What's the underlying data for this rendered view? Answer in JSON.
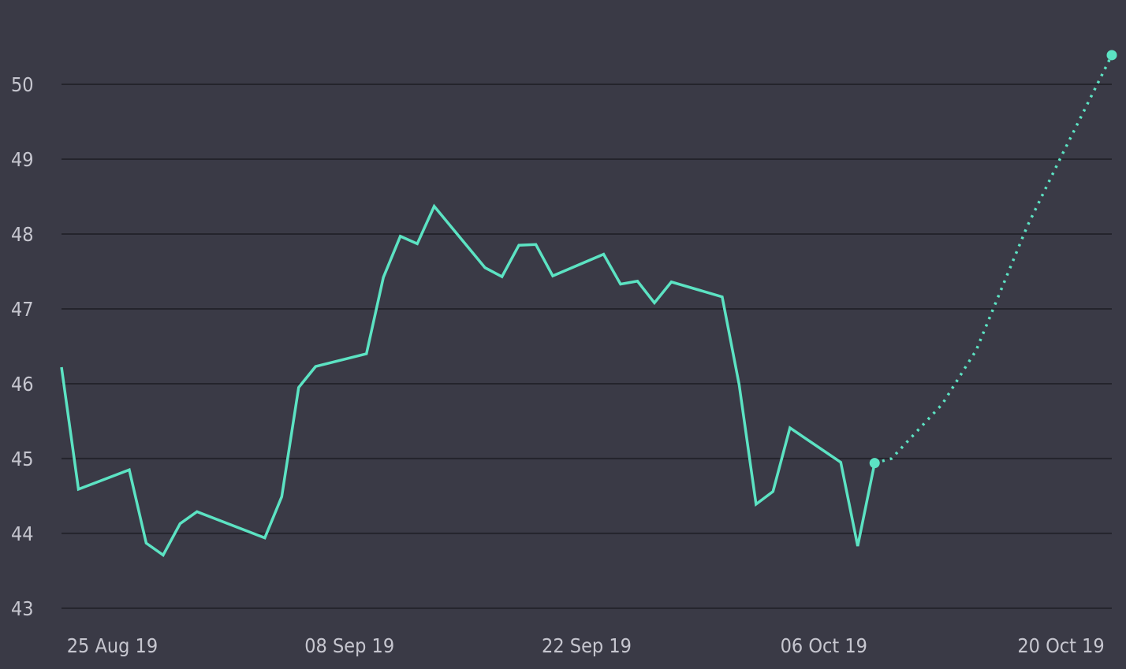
{
  "chart_data": {
    "type": "line",
    "title": "",
    "xlabel": "",
    "ylabel": "",
    "x_range": [
      "2019-08-22",
      "2019-10-23"
    ],
    "ylim": [
      43,
      50
    ],
    "y_axis_min_shown": 42.62,
    "y_axis_max_shown": 51.0,
    "grid": true,
    "legend": "none",
    "colors": {
      "background": "#3a3a46",
      "grid": "#24242c",
      "series": "#5ce3c3",
      "tick_text": "#c6c6cf"
    },
    "y_ticks": [
      {
        "value": 43,
        "label": "43"
      },
      {
        "value": 44,
        "label": "44"
      },
      {
        "value": 45,
        "label": "45"
      },
      {
        "value": 46,
        "label": "46"
      },
      {
        "value": 47,
        "label": "47"
      },
      {
        "value": 48,
        "label": "48"
      },
      {
        "value": 49,
        "label": "49"
      },
      {
        "value": 50,
        "label": "50"
      }
    ],
    "x_ticks": [
      {
        "date": "2019-08-25",
        "label": "25 Aug 19"
      },
      {
        "date": "2019-09-08",
        "label": "08 Sep 19"
      },
      {
        "date": "2019-09-22",
        "label": "22 Sep 19"
      },
      {
        "date": "2019-10-06",
        "label": "06 Oct 19"
      },
      {
        "date": "2019-10-20",
        "label": "20 Oct 19"
      }
    ],
    "series": [
      {
        "style": "solid",
        "points": [
          {
            "x": "2019-08-22",
            "y": 46.22
          },
          {
            "x": "2019-08-23",
            "y": 44.59
          },
          {
            "x": "2019-08-26",
            "y": 44.85
          },
          {
            "x": "2019-08-27",
            "y": 43.87
          },
          {
            "x": "2019-08-28",
            "y": 43.71
          },
          {
            "x": "2019-08-29",
            "y": 44.13
          },
          {
            "x": "2019-08-30",
            "y": 44.29
          },
          {
            "x": "2019-09-03",
            "y": 43.94
          },
          {
            "x": "2019-09-04",
            "y": 44.49
          },
          {
            "x": "2019-09-05",
            "y": 45.95
          },
          {
            "x": "2019-09-06",
            "y": 46.23
          },
          {
            "x": "2019-09-09",
            "y": 46.4
          },
          {
            "x": "2019-09-10",
            "y": 47.42
          },
          {
            "x": "2019-09-11",
            "y": 47.97
          },
          {
            "x": "2019-09-12",
            "y": 47.87
          },
          {
            "x": "2019-09-13",
            "y": 48.37
          },
          {
            "x": "2019-09-16",
            "y": 47.55
          },
          {
            "x": "2019-09-17",
            "y": 47.43
          },
          {
            "x": "2019-09-18",
            "y": 47.85
          },
          {
            "x": "2019-09-19",
            "y": 47.86
          },
          {
            "x": "2019-09-20",
            "y": 47.44
          },
          {
            "x": "2019-09-23",
            "y": 47.73
          },
          {
            "x": "2019-09-24",
            "y": 47.33
          },
          {
            "x": "2019-09-25",
            "y": 47.37
          },
          {
            "x": "2019-09-26",
            "y": 47.08
          },
          {
            "x": "2019-09-27",
            "y": 47.36
          },
          {
            "x": "2019-09-30",
            "y": 47.16
          },
          {
            "x": "2019-10-01",
            "y": 45.99
          },
          {
            "x": "2019-10-02",
            "y": 44.39
          },
          {
            "x": "2019-10-03",
            "y": 44.56
          },
          {
            "x": "2019-10-04",
            "y": 45.41
          },
          {
            "x": "2019-10-07",
            "y": 44.95
          },
          {
            "x": "2019-10-08",
            "y": 43.83
          },
          {
            "x": "2019-10-09",
            "y": 44.94
          }
        ]
      },
      {
        "style": "dotted",
        "points": [
          {
            "x": "2019-10-09",
            "y": 44.94
          },
          {
            "x": "2019-10-10",
            "y": 45.0
          },
          {
            "x": "2019-10-13",
            "y": 45.73
          },
          {
            "x": "2019-10-15",
            "y": 46.45
          },
          {
            "x": "2019-10-18",
            "y": 48.1
          },
          {
            "x": "2019-10-20",
            "y": 49.03
          },
          {
            "x": "2019-10-23",
            "y": 50.39
          }
        ]
      }
    ],
    "markers": [
      {
        "x": "2019-10-09",
        "y": 44.94
      },
      {
        "x": "2019-10-23",
        "y": 50.39
      }
    ]
  }
}
